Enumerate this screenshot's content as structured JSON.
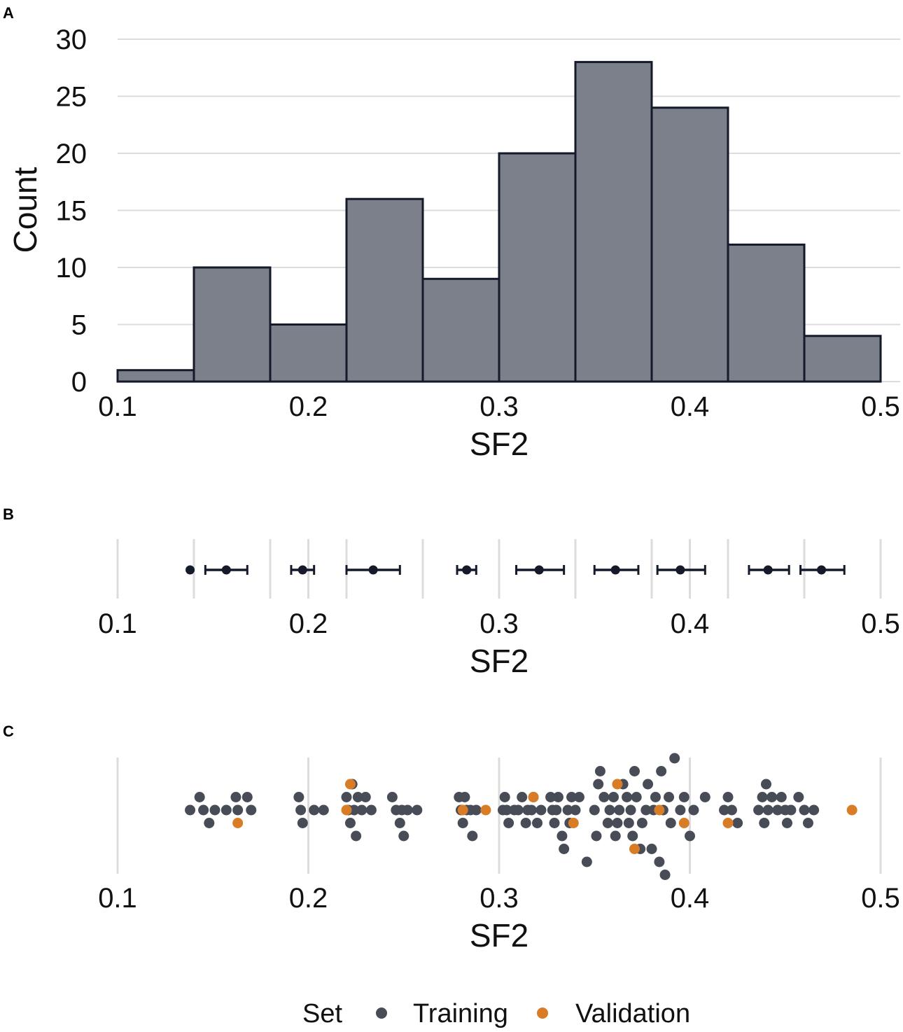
{
  "colors": {
    "bar_fill": "#7b808b",
    "bar_stroke": "#151a2b",
    "grid": "#dcdcdc",
    "training": "#474c57",
    "validation": "#d97c26",
    "interval": "#151a2b"
  },
  "chart_data": [
    {
      "panel": "A",
      "type": "bar",
      "title": "",
      "xlabel": "SF2",
      "ylabel": "Count",
      "xlim": [
        0.1,
        0.5
      ],
      "ylim": [
        0,
        30
      ],
      "xticks": [
        "0.1",
        "0.2",
        "0.3",
        "0.4",
        "0.5"
      ],
      "yticks": [
        "0",
        "5",
        "10",
        "15",
        "20",
        "25",
        "30"
      ],
      "bins": [
        {
          "start": 0.1,
          "end": 0.14,
          "count": 1
        },
        {
          "start": 0.14,
          "end": 0.18,
          "count": 10
        },
        {
          "start": 0.18,
          "end": 0.22,
          "count": 5
        },
        {
          "start": 0.22,
          "end": 0.26,
          "count": 16
        },
        {
          "start": 0.26,
          "end": 0.3,
          "count": 9
        },
        {
          "start": 0.3,
          "end": 0.34,
          "count": 20
        },
        {
          "start": 0.34,
          "end": 0.38,
          "count": 28
        },
        {
          "start": 0.38,
          "end": 0.42,
          "count": 24
        },
        {
          "start": 0.42,
          "end": 0.46,
          "count": 12
        },
        {
          "start": 0.46,
          "end": 0.5,
          "count": 4
        }
      ]
    },
    {
      "panel": "B",
      "type": "scatter",
      "xlabel": "SF2",
      "xlim": [
        0.1,
        0.5
      ],
      "xticks": [
        "0.1",
        "0.2",
        "0.3",
        "0.4",
        "0.5"
      ],
      "bin_boundaries": [
        0.14,
        0.18,
        0.22,
        0.26,
        0.3,
        0.34,
        0.38,
        0.42,
        0.46
      ],
      "intervals": [
        {
          "mean": 0.138,
          "lo": 0.138,
          "hi": 0.138
        },
        {
          "mean": 0.157,
          "lo": 0.146,
          "hi": 0.168
        },
        {
          "mean": 0.197,
          "lo": 0.191,
          "hi": 0.203
        },
        {
          "mean": 0.234,
          "lo": 0.22,
          "hi": 0.248
        },
        {
          "mean": 0.283,
          "lo": 0.278,
          "hi": 0.288
        },
        {
          "mean": 0.321,
          "lo": 0.309,
          "hi": 0.334
        },
        {
          "mean": 0.361,
          "lo": 0.35,
          "hi": 0.373
        },
        {
          "mean": 0.395,
          "lo": 0.383,
          "hi": 0.408
        },
        {
          "mean": 0.441,
          "lo": 0.431,
          "hi": 0.452
        },
        {
          "mean": 0.469,
          "lo": 0.458,
          "hi": 0.481
        }
      ]
    },
    {
      "panel": "C",
      "type": "scatter",
      "xlabel": "SF2",
      "xlim": [
        0.1,
        0.5
      ],
      "xticks": [
        "0.1",
        "0.2",
        "0.3",
        "0.4",
        "0.5"
      ],
      "series": [
        {
          "name": "Training",
          "x": [
            0.138,
            0.143,
            0.145,
            0.148,
            0.151,
            0.157,
            0.162,
            0.163,
            0.168,
            0.17,
            0.195,
            0.196,
            0.197,
            0.203,
            0.208,
            0.22,
            0.221,
            0.222,
            0.223,
            0.224,
            0.225,
            0.226,
            0.228,
            0.23,
            0.233,
            0.244,
            0.246,
            0.248,
            0.249,
            0.25,
            0.252,
            0.257,
            0.279,
            0.28,
            0.281,
            0.282,
            0.283,
            0.285,
            0.286,
            0.288,
            0.302,
            0.303,
            0.304,
            0.305,
            0.308,
            0.31,
            0.312,
            0.314,
            0.315,
            0.317,
            0.318,
            0.32,
            0.322,
            0.327,
            0.328,
            0.329,
            0.33,
            0.331,
            0.333,
            0.334,
            0.336,
            0.337,
            0.338,
            0.34,
            0.342,
            0.346,
            0.35,
            0.351,
            0.352,
            0.353,
            0.355,
            0.357,
            0.358,
            0.36,
            0.361,
            0.362,
            0.363,
            0.365,
            0.367,
            0.368,
            0.369,
            0.37,
            0.371,
            0.372,
            0.374,
            0.375,
            0.377,
            0.378,
            0.38,
            0.381,
            0.382,
            0.384,
            0.385,
            0.386,
            0.387,
            0.389,
            0.39,
            0.392,
            0.395,
            0.397,
            0.4,
            0.402,
            0.408,
            0.418,
            0.42,
            0.422,
            0.425,
            0.436,
            0.438,
            0.439,
            0.44,
            0.441,
            0.443,
            0.446,
            0.448,
            0.45,
            0.451,
            0.453,
            0.457,
            0.46,
            0.462,
            0.465
          ],
          "y": [
            0,
            1,
            0,
            -1,
            0,
            0,
            1,
            0,
            1,
            0,
            1,
            0,
            -1,
            0,
            0,
            1,
            0,
            -1,
            2,
            0,
            -2,
            1,
            0,
            1,
            0,
            1,
            0,
            -1,
            0,
            -2,
            0,
            0,
            1,
            0,
            -1,
            1,
            0,
            0,
            -2,
            0,
            0,
            1,
            0,
            -1,
            0,
            0,
            1,
            -1,
            0,
            0,
            1,
            -1,
            0,
            1,
            0,
            -1,
            0,
            1,
            -2,
            -3,
            0,
            -1,
            1,
            0,
            1,
            -4,
            0,
            -2,
            2,
            3,
            1,
            -1,
            0,
            1,
            -2,
            -1,
            0,
            2,
            1,
            -1,
            0,
            -2,
            3,
            1,
            -3,
            -1,
            0,
            2,
            -3,
            0,
            1,
            -4,
            3,
            0,
            -5,
            1,
            -1,
            4,
            0,
            1,
            -2,
            0,
            1,
            0,
            1,
            0,
            -1,
            0,
            1,
            -1,
            2,
            0,
            1,
            0,
            1,
            0,
            -1,
            0,
            1,
            0,
            -1,
            0
          ]
        },
        {
          "name": "Validation",
          "x": [
            0.163,
            0.22,
            0.222,
            0.281,
            0.293,
            0.318,
            0.339,
            0.362,
            0.371,
            0.384,
            0.397,
            0.42,
            0.485
          ],
          "y": [
            -1,
            0,
            2,
            0,
            0,
            1,
            -1,
            2,
            -3,
            0,
            -1,
            -1,
            0
          ]
        }
      ]
    }
  ],
  "legend": {
    "title": "Set",
    "items": [
      {
        "label": "Training",
        "color": "#474c57"
      },
      {
        "label": "Validation",
        "color": "#d97c26"
      }
    ]
  },
  "panels": {
    "a_label": "A",
    "b_label": "B",
    "c_label": "C"
  }
}
